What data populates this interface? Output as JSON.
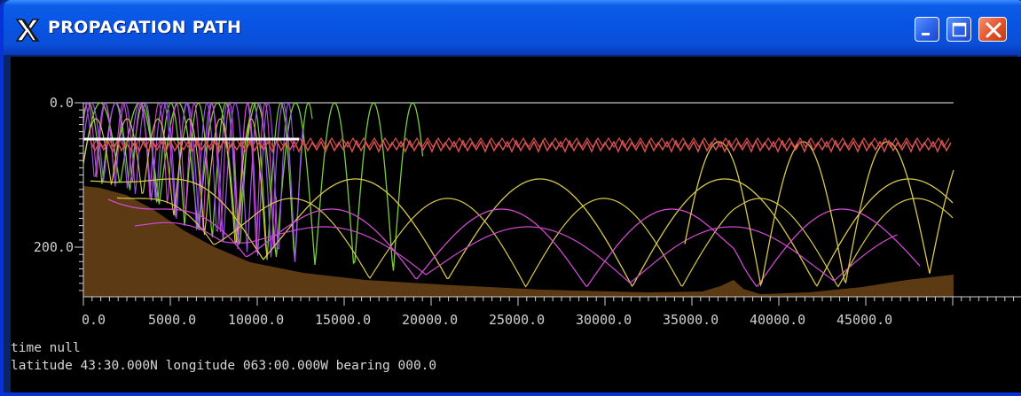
{
  "window": {
    "title": "PROPAGATION PATH",
    "icon": "x-logo-icon",
    "controls": {
      "minimize": "minimize-icon",
      "maximize": "maximize-icon",
      "close": "close-icon"
    }
  },
  "colors": {
    "background": "#000000",
    "bathymetry": "#5c3a14",
    "surface_line": "#c0c0c0",
    "red_rays": "#d85050",
    "green_rays": "#7acd40",
    "purple_rays": "#9a54e8",
    "magenta_rays": "#d04ad0",
    "yellow_rays": "#d8c84a",
    "axis": "#d0d0d0"
  },
  "plot": {
    "y_tick_labels": [
      "0.0",
      "200.0"
    ],
    "x_tick_labels": [
      "0.0",
      "5000.0",
      "10000.0",
      "15000.0",
      "20000.0",
      "25000.0",
      "30000.0",
      "35000.0",
      "40000.0",
      "45000.0"
    ]
  },
  "status": {
    "time_line": "time null",
    "position_line": "latitude 43:30.000N  longitude 063:00.000W  bearing 000.0"
  }
}
